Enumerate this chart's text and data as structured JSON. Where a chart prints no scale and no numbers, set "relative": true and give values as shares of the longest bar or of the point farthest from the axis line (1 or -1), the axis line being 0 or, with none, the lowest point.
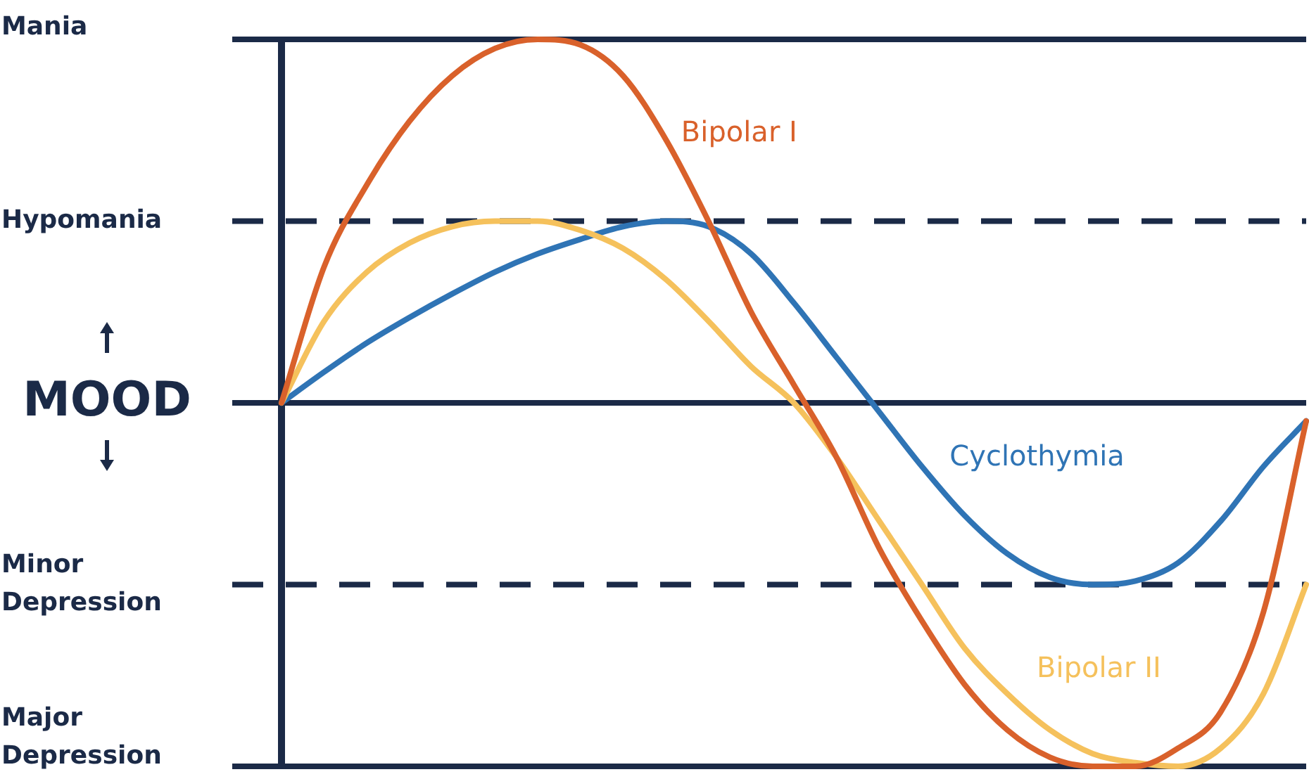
{
  "chart_data": {
    "type": "line",
    "ylabel": "MOOD",
    "relative": true,
    "categories": [
      null,
      null,
      null,
      null,
      null,
      null,
      null,
      null,
      null,
      null,
      null,
      null,
      null,
      null,
      null,
      null,
      null,
      null,
      null,
      null,
      null,
      null,
      null,
      null,
      null
    ],
    "series": [
      {
        "name": "Bipolar I",
        "color": "#d9612b",
        "values": [
          0,
          0.375,
          0.6,
          0.775,
          0.9,
          0.975,
          1.0,
          0.985,
          0.9,
          0.725,
          0.5,
          0.25,
          0.05,
          -0.15,
          -0.4,
          -0.6,
          -0.775,
          -0.9,
          -0.975,
          -1.0,
          -1.0,
          -0.95,
          -0.85,
          -0.575,
          -0.05
        ]
      },
      {
        "name": "Bipolar II",
        "color": "#f5c15c",
        "values": [
          0,
          0.225,
          0.36,
          0.44,
          0.485,
          0.5,
          0.5,
          0.475,
          0.425,
          0.34,
          0.225,
          0.1,
          0,
          -0.15,
          -0.325,
          -0.5,
          -0.675,
          -0.8,
          -0.9,
          -0.965,
          -0.99,
          -1.0,
          -0.95,
          -0.8,
          -0.5
        ]
      },
      {
        "name": "Cyclothymia",
        "color": "#2f74b5",
        "values": [
          0,
          0.085,
          0.165,
          0.235,
          0.3,
          0.36,
          0.41,
          0.45,
          0.485,
          0.5,
          0.485,
          0.41,
          0.275,
          0.125,
          -0.025,
          -0.175,
          -0.31,
          -0.415,
          -0.48,
          -0.5,
          -0.49,
          -0.44,
          -0.325,
          -0.175,
          -0.05
        ]
      }
    ],
    "ref_lines": [
      {
        "axis": "y",
        "value": 1,
        "label": "Mania",
        "color": "#1b2a47",
        "line_style": "solid"
      },
      {
        "axis": "y",
        "value": 0.5,
        "label": "Hypomania",
        "color": "#1b2a47",
        "line_style": "dashed"
      },
      {
        "axis": "y",
        "value": 0,
        "color": "#1b2a47",
        "line_style": "solid"
      },
      {
        "axis": "y",
        "value": -0.5,
        "label": "Minor Depression",
        "color": "#1b2a47",
        "line_style": "dashed"
      },
      {
        "axis": "y",
        "value": -1,
        "label": "Major Depression",
        "color": "#1b2a47",
        "line_style": "solid"
      }
    ],
    "legend": false,
    "marker": "none",
    "line_style": "solid"
  }
}
